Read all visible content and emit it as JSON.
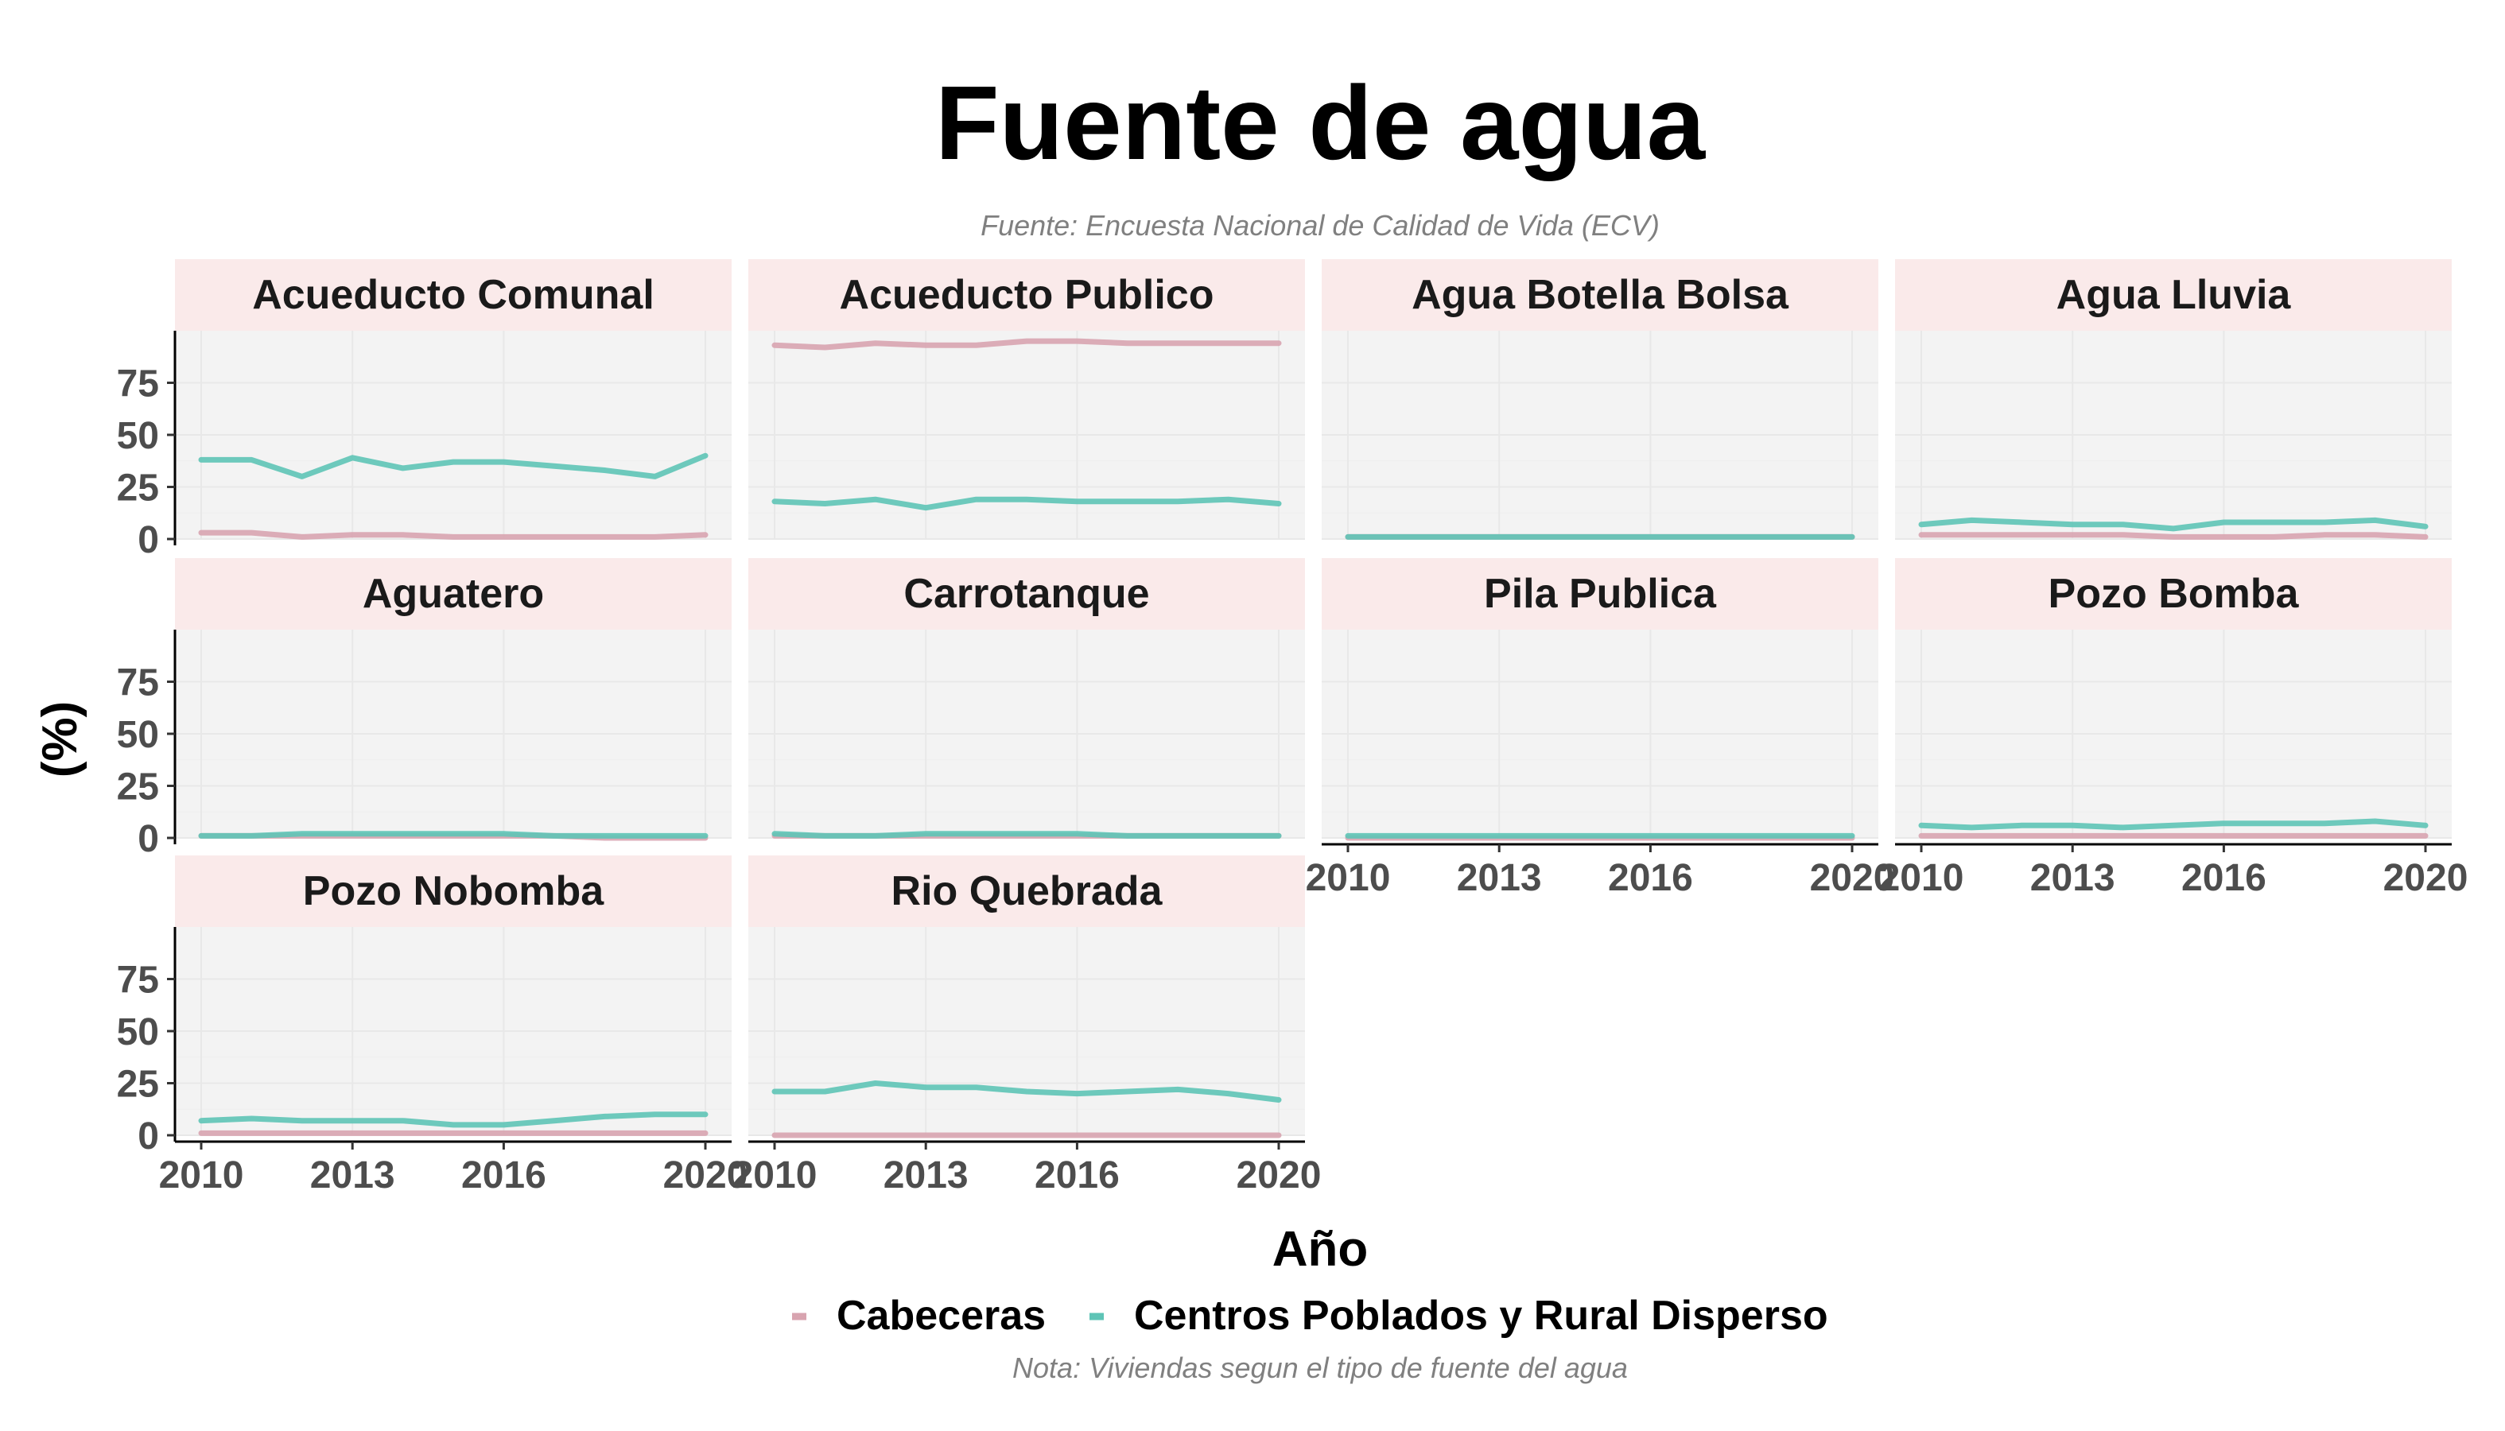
{
  "title": "Fuente de agua",
  "subtitle": "Fuente: Encuesta Nacional de Calidad de Vida (ECV)",
  "caption": "Nota: Viviendas segun el tipo de fuente del agua",
  "colors": {
    "Cabeceras": "#d8a4b0",
    "Centros Poblados y Rural Disperso": "#5ec4b6",
    "strip": "#faeaea",
    "panel": "#f3f3f3"
  },
  "chart_data": {
    "type": "line",
    "title": "Fuente de agua",
    "xlabel": "Año",
    "ylabel": "(%)",
    "x": [
      2010,
      2011,
      2012,
      2013,
      2014,
      2015,
      2016,
      2017,
      2018,
      2019,
      2020
    ],
    "x_ticks": [
      2010,
      2013,
      2016,
      2020
    ],
    "y_ticks": [
      0,
      25,
      50,
      75
    ],
    "xlim": [
      2010,
      2020
    ],
    "ylim": [
      0,
      100
    ],
    "legend": {
      "position": "bottom",
      "entries": [
        "Cabeceras",
        "Centros Poblados y Rural Disperso"
      ]
    },
    "grid": true,
    "panels": [
      {
        "name": "Acueducto Comunal",
        "series": [
          {
            "name": "Cabeceras",
            "values": [
              3,
              3,
              1,
              2,
              2,
              1,
              1,
              1,
              1,
              1,
              2
            ]
          },
          {
            "name": "Centros Poblados y Rural Disperso",
            "values": [
              38,
              38,
              30,
              39,
              34,
              37,
              37,
              35,
              33,
              30,
              40
            ]
          }
        ]
      },
      {
        "name": "Acueducto Publico",
        "series": [
          {
            "name": "Cabeceras",
            "values": [
              93,
              92,
              94,
              93,
              93,
              95,
              95,
              94,
              94,
              94,
              94
            ]
          },
          {
            "name": "Centros Poblados y Rural Disperso",
            "values": [
              18,
              17,
              19,
              15,
              19,
              19,
              18,
              18,
              18,
              19,
              17
            ]
          }
        ]
      },
      {
        "name": "Agua Botella Bolsa",
        "series": [
          {
            "name": "Cabeceras",
            "values": [
              1,
              1,
              1,
              1,
              1,
              1,
              1,
              1,
              1,
              1,
              1
            ]
          },
          {
            "name": "Centros Poblados y Rural Disperso",
            "values": [
              1,
              1,
              1,
              1,
              1,
              1,
              1,
              1,
              1,
              1,
              1
            ]
          }
        ]
      },
      {
        "name": "Agua Lluvia",
        "series": [
          {
            "name": "Cabeceras",
            "values": [
              2,
              2,
              2,
              2,
              2,
              1,
              1,
              1,
              2,
              2,
              1
            ]
          },
          {
            "name": "Centros Poblados y Rural Disperso",
            "values": [
              7,
              9,
              8,
              7,
              7,
              5,
              8,
              8,
              8,
              9,
              6
            ]
          }
        ]
      },
      {
        "name": "Aguatero",
        "series": [
          {
            "name": "Cabeceras",
            "values": [
              1,
              1,
              1,
              1,
              1,
              1,
              1,
              1,
              0,
              0,
              0
            ]
          },
          {
            "name": "Centros Poblados y Rural Disperso",
            "values": [
              1,
              1,
              2,
              2,
              2,
              2,
              2,
              1,
              1,
              1,
              1
            ]
          }
        ]
      },
      {
        "name": "Carrotanque",
        "series": [
          {
            "name": "Cabeceras",
            "values": [
              1,
              1,
              1,
              1,
              1,
              1,
              1,
              1,
              1,
              1,
              1
            ]
          },
          {
            "name": "Centros Poblados y Rural Disperso",
            "values": [
              2,
              1,
              1,
              2,
              2,
              2,
              2,
              1,
              1,
              1,
              1
            ]
          }
        ]
      },
      {
        "name": "Pila Publica",
        "series": [
          {
            "name": "Cabeceras",
            "values": [
              0,
              0,
              0,
              0,
              0,
              0,
              0,
              0,
              0,
              0,
              0
            ]
          },
          {
            "name": "Centros Poblados y Rural Disperso",
            "values": [
              1,
              1,
              1,
              1,
              1,
              1,
              1,
              1,
              1,
              1,
              1
            ]
          }
        ]
      },
      {
        "name": "Pozo Bomba",
        "series": [
          {
            "name": "Cabeceras",
            "values": [
              1,
              1,
              1,
              1,
              1,
              1,
              1,
              1,
              1,
              1,
              1
            ]
          },
          {
            "name": "Centros Poblados y Rural Disperso",
            "values": [
              6,
              5,
              6,
              6,
              5,
              6,
              7,
              7,
              7,
              8,
              6
            ]
          }
        ]
      },
      {
        "name": "Pozo Nobomba",
        "series": [
          {
            "name": "Cabeceras",
            "values": [
              1,
              1,
              1,
              1,
              1,
              1,
              1,
              1,
              1,
              1,
              1
            ]
          },
          {
            "name": "Centros Poblados y Rural Disperso",
            "values": [
              7,
              8,
              7,
              7,
              7,
              5,
              5,
              7,
              9,
              10,
              10
            ]
          }
        ]
      },
      {
        "name": "Rio Quebrada",
        "series": [
          {
            "name": "Cabeceras",
            "values": [
              0,
              0,
              0,
              0,
              0,
              0,
              0,
              0,
              0,
              0,
              0
            ]
          },
          {
            "name": "Centros Poblados y Rural Disperso",
            "values": [
              21,
              21,
              25,
              23,
              23,
              21,
              20,
              21,
              22,
              20,
              17
            ]
          }
        ]
      }
    ]
  }
}
